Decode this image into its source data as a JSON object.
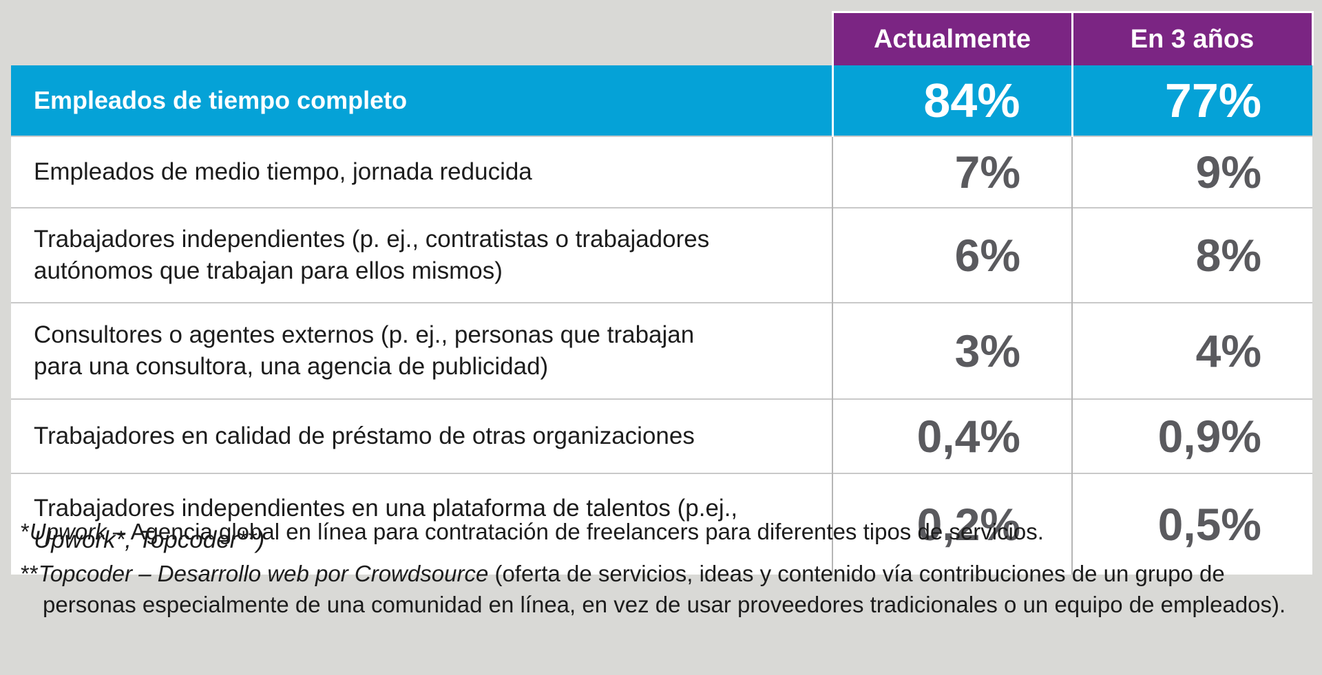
{
  "chart_data": {
    "type": "table",
    "columns": [
      "Actualmente",
      "En 3 años"
    ],
    "rows": [
      {
        "label_lines": [
          "Empleados de tiempo completo"
        ],
        "values": [
          "84%",
          "77%"
        ],
        "highlight": true
      },
      {
        "label_lines": [
          "Empleados de medio tiempo, jornada reducida"
        ],
        "values": [
          "7%",
          "9%"
        ]
      },
      {
        "label_lines": [
          "Trabajadores independientes (p. ej., contratistas o trabajadores",
          "autónomos que trabajan para ellos mismos)"
        ],
        "values": [
          "6%",
          "8%"
        ]
      },
      {
        "label_lines": [
          "Consultores o agentes externos (p. ej., personas que trabajan",
          "para una consultora, una agencia de publicidad)"
        ],
        "values": [
          "3%",
          "4%"
        ]
      },
      {
        "label_lines": [
          "Trabajadores en calidad de préstamo de otras organizaciones"
        ],
        "values": [
          "0,4%",
          "0,9%"
        ]
      },
      {
        "label_lines": [
          "Trabajadores independientes en una plataforma de talentos (p.ej.,",
          "Upwork*, Topcoder**)"
        ],
        "values": [
          "0,2%",
          "0,5%"
        ]
      }
    ],
    "colors": {
      "header": "#7b2583",
      "highlight_row": "#05a2d7",
      "value_text": "#5a5a5e",
      "background": "#d9d9d6"
    }
  },
  "footnotes": {
    "note1_prefix": "*",
    "note1_italic": "Upwork",
    "note1_text": " – Agencia global en línea para contratación de freelancers para diferentes tipos de servicios.",
    "note2_prefix": "**",
    "note2_italic": "Topcoder –  Desarrollo web por Crowdsource",
    "note2_text": " (oferta de servicios, ideas y contenido vía contribuciones de un grupo de personas especialmente de una comunidad en línea, en vez de usar proveedores tradicionales o un equipo de empleados)."
  }
}
